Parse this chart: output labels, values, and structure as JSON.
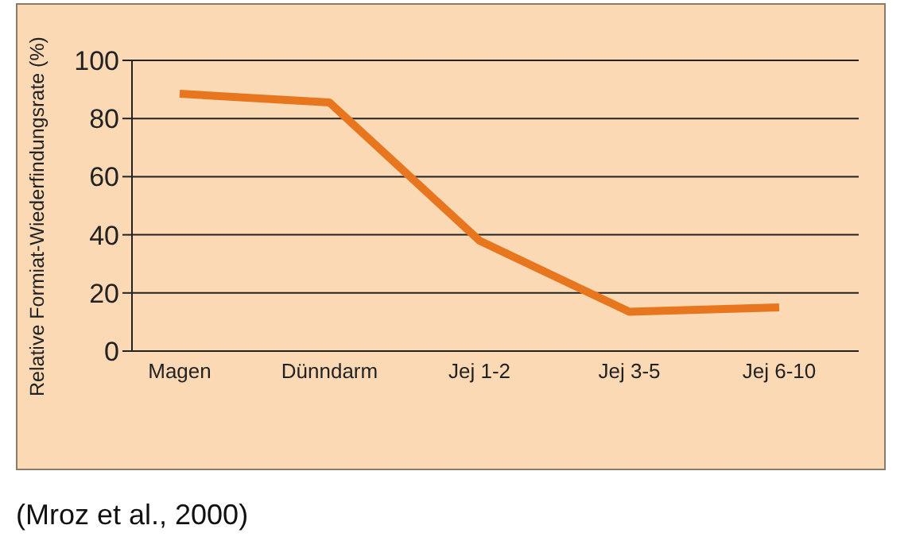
{
  "chart_data": {
    "type": "line",
    "ylabel": "Relative Formiat-Wiederfindungsrate (%)",
    "categories": [
      "Magen",
      "Dünndarm",
      "Jej 1-2",
      "Jej 3-5",
      "Jej 6-10"
    ],
    "series": [
      {
        "color": "#e8761e",
        "values": [
          88.5,
          85.5,
          38,
          13.5,
          15
        ]
      }
    ],
    "ylim": [
      0,
      100
    ],
    "yticks": [
      0,
      20,
      40,
      60,
      80,
      100
    ],
    "grid": "y",
    "legend": false,
    "marker": "none",
    "line_style": "solid",
    "annotations": [
      "(Mroz et al., 2000)"
    ]
  }
}
